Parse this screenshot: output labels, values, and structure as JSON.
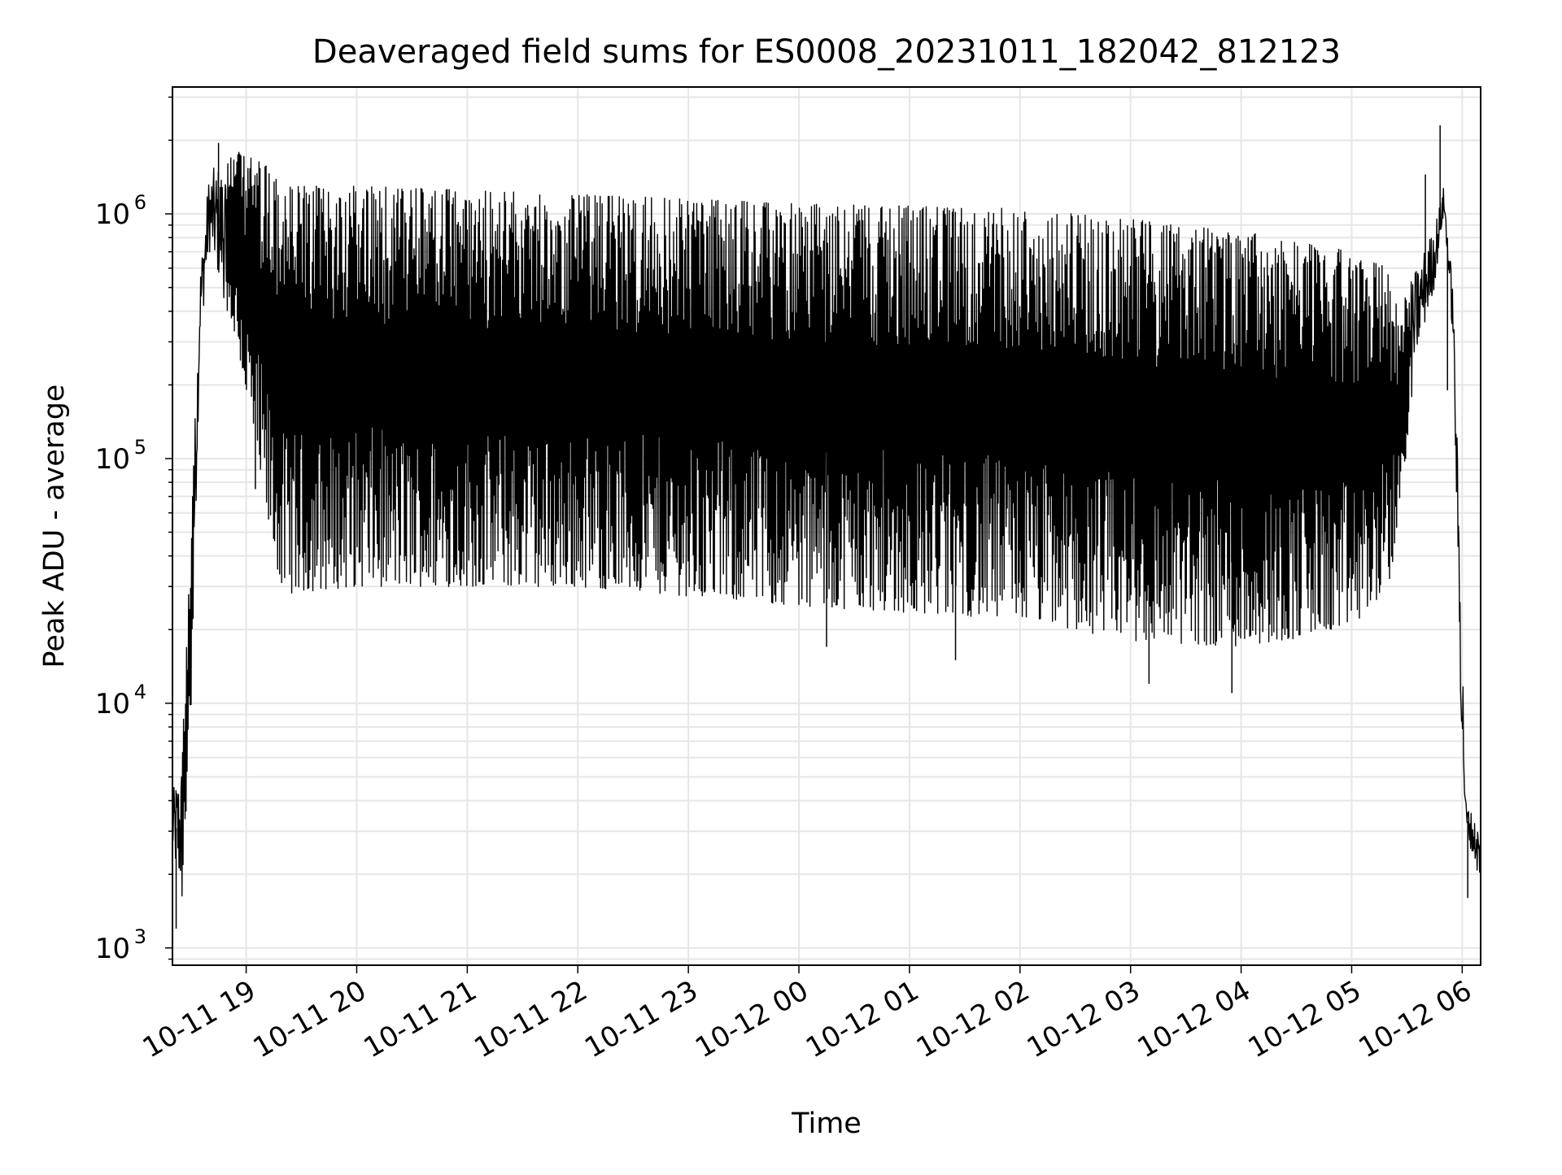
{
  "chart_data": {
    "type": "line",
    "title": "Deaveraged field sums for ES0008_20231011_182042_812123",
    "xlabel": "Time",
    "ylabel": "Peak ADU - average",
    "y_scale": "log",
    "ylim": [
      850,
      3300000
    ],
    "xlim": [
      "2023-10-11 18:20",
      "2023-10-12 06:10"
    ],
    "x_ticks": [
      "10-11 19",
      "10-11 20",
      "10-11 21",
      "10-11 22",
      "10-11 23",
      "10-12 00",
      "10-12 01",
      "10-12 02",
      "10-12 03",
      "10-12 04",
      "10-12 05",
      "10-12 06"
    ],
    "y_ticks": [
      {
        "value": 1000,
        "base": "10",
        "exp": "3"
      },
      {
        "value": 10000,
        "base": "10",
        "exp": "4"
      },
      {
        "value": 100000,
        "base": "10",
        "exp": "5"
      },
      {
        "value": 1000000,
        "base": "10",
        "exp": "6"
      }
    ],
    "grid": true,
    "line_color": "#000000",
    "grid_color": "#e6e6e6",
    "series": [
      {
        "envelope": [
          {
            "t": "2023-10-11 18:20",
            "low": 2300,
            "high": 4300
          },
          {
            "t": "2023-10-11 18:25",
            "low": 1500,
            "high": 6000
          },
          {
            "t": "2023-10-11 18:30",
            "low": 9000,
            "high": 50000
          },
          {
            "t": "2023-10-11 18:35",
            "low": 300000,
            "high": 600000
          },
          {
            "t": "2023-10-11 18:40",
            "low": 700000,
            "high": 1500000
          },
          {
            "t": "2023-10-11 18:55",
            "low": 300000,
            "high": 1800000
          },
          {
            "t": "2023-10-11 19:10",
            "low": 60000,
            "high": 1600000
          },
          {
            "t": "2023-10-11 19:20",
            "low": 28000,
            "high": 1300000
          },
          {
            "t": "2023-10-11 20:00",
            "low": 30000,
            "high": 1300000
          },
          {
            "t": "2023-10-11 22:00",
            "low": 30000,
            "high": 1200000
          },
          {
            "t": "2023-10-12 00:00",
            "low": 25000,
            "high": 1100000
          },
          {
            "t": "2023-10-12 02:00",
            "low": 22000,
            "high": 1050000
          },
          {
            "t": "2023-10-12 03:00",
            "low": 18000,
            "high": 950000
          },
          {
            "t": "2023-10-12 04:00",
            "low": 17000,
            "high": 850000
          },
          {
            "t": "2023-10-12 05:00",
            "low": 20000,
            "high": 700000
          },
          {
            "t": "2023-10-12 05:20",
            "low": 30000,
            "high": 600000
          },
          {
            "t": "2023-10-12 05:25",
            "low": 50000,
            "high": 400000
          },
          {
            "t": "2023-10-12 05:35",
            "low": 250000,
            "high": 600000
          },
          {
            "t": "2023-10-12 05:45",
            "low": 500000,
            "high": 900000
          },
          {
            "t": "2023-10-12 05:50",
            "low": 1000000,
            "high": 1300000
          },
          {
            "t": "2023-10-12 05:55",
            "low": 300000,
            "high": 500000
          },
          {
            "t": "2023-10-12 06:00",
            "low": 5000,
            "high": 20000
          },
          {
            "t": "2023-10-12 06:02",
            "low": 3000,
            "high": 4000
          },
          {
            "t": "2023-10-12 06:10",
            "low": 1800,
            "high": 3000
          }
        ],
        "spikes": [
          {
            "t": "2023-10-11 18:22",
            "value": 1200
          },
          {
            "t": "2023-10-11 18:45",
            "value": 1950000
          },
          {
            "t": "2023-10-11 19:05",
            "value": 75000
          },
          {
            "t": "2023-10-12 00:15",
            "value": 17000
          },
          {
            "t": "2023-10-12 01:25",
            "value": 15000
          },
          {
            "t": "2023-10-12 03:10",
            "value": 12000
          },
          {
            "t": "2023-10-12 03:55",
            "value": 11000
          },
          {
            "t": "2023-10-12 05:40",
            "value": 1450000
          },
          {
            "t": "2023-10-12 05:48",
            "value": 2300000
          },
          {
            "t": "2023-10-12 05:52",
            "value": 190000
          },
          {
            "t": "2023-10-12 06:03",
            "value": 1600
          }
        ]
      }
    ]
  }
}
